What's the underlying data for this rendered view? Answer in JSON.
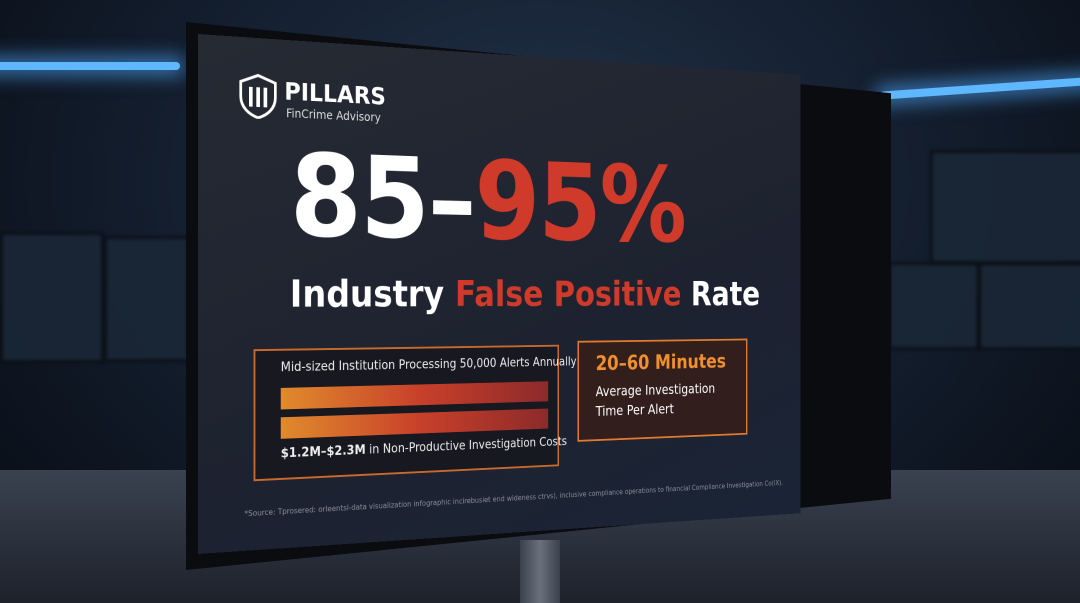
{
  "logo": {
    "name": "PILLARS",
    "tagline": "FinCrime Advisory"
  },
  "headline": {
    "low": "85–",
    "high": "95%"
  },
  "subheadline": {
    "lead": "Industry",
    "highlight": "False Positive",
    "tail": "Rate"
  },
  "cost_box": {
    "title": "Mid-sized Institution Processing 50,000 Alerts Annually",
    "amount": "$1.2M–$2.3M",
    "caption": "in Non-Productive Investigation Costs"
  },
  "time_box": {
    "value": "20–60 Minutes",
    "line1": "Average Investigation",
    "line2": "Time Per Alert"
  },
  "footnote": "*Source: Tprosered: orleentsl-data visualization infographic incirebusiet end wideness ctrvs), inclusive compliance operations to financial Compliance Investigation Co(IX)."
}
